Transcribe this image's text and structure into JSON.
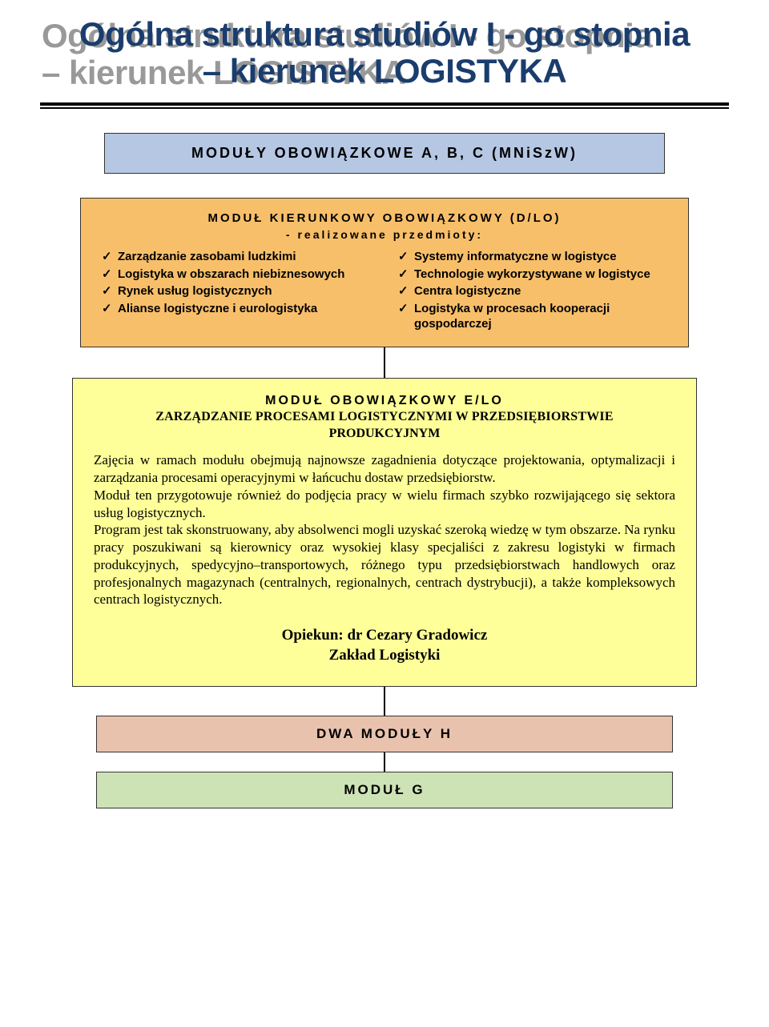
{
  "title": {
    "line1": "Ogólna struktura studiów I - go stopnia",
    "line2": "– kierunek LOGISTYKA",
    "color": "#1a3d6d",
    "shadow_color": "#999999",
    "fontsize": 42
  },
  "box_abc": {
    "label": "MODUŁY OBOWIĄZKOWE A, B, C (MNiSzW)",
    "bg": "#b5c7e3"
  },
  "box_dlo": {
    "heading": "MODUŁ KIERUNKOWY OBOWIĄZKOWY (D/LO)",
    "subheading": "- realizowane przedmioty:",
    "bg": "#f8bf6a",
    "left_items": [
      "Zarządzanie zasobami ludzkimi",
      "Logistyka w obszarach niebiz­nesowych",
      "Rynek usług logistycznych",
      "Alianse logistyczne i eurologi­styka"
    ],
    "right_items": [
      "Systemy informatyczne w logistyce",
      "Technologie wykorzystywane w lo­gistyce",
      "Centra logistyczne",
      "Logistyka w procesach kooperacji gospodarczej"
    ]
  },
  "box_elo": {
    "bg": "#ffff99",
    "mod_head": "MODUŁ OBOWIĄZKOWY E/LO",
    "mod_sub1": "ZARZĄDZANIE PROCESAMI LOGISTYCZNYMI W PRZEDSIĘBIORSTWIE",
    "mod_sub2": "PRODUKCYJNYM",
    "para1": "Zajęcia w ramach modułu obejmują najnowsze zagadnienia dotyczące projektowa­nia, optymalizacji i zarządzania procesami operacyjnymi w łańcuchu dostaw przed­siębiorstw.",
    "para2": "Moduł ten przygotowuje również do podjęcia pracy w wielu firmach szybko rozwi­jającego się sektora usług logistycznych.",
    "para3": "Program jest tak skonstruowany, aby absolwenci mogli uzyskać szeroką wiedzę w tym obszarze. Na rynku pracy poszukiwani są kierownicy oraz wysokiej klasy spe­cjaliści z zakresu logistyki w firmach produkcyjnych, spedycyjno–transportowych, różnego typu przedsiębiorstwach handlowych oraz profesjonalnych magazynach (centralnych, regionalnych, centrach dystrybucji), a także kompleksowych centrach logistycznych.",
    "opiekun_line1": "Opiekun: dr Cezary Gradowicz",
    "opiekun_line2": "Zakład Logistyki"
  },
  "box_h": {
    "label": "DWA MODUŁY H",
    "bg": "#e9c2ae"
  },
  "box_g": {
    "label": "MODUŁ G",
    "bg": "#cde3b5"
  }
}
